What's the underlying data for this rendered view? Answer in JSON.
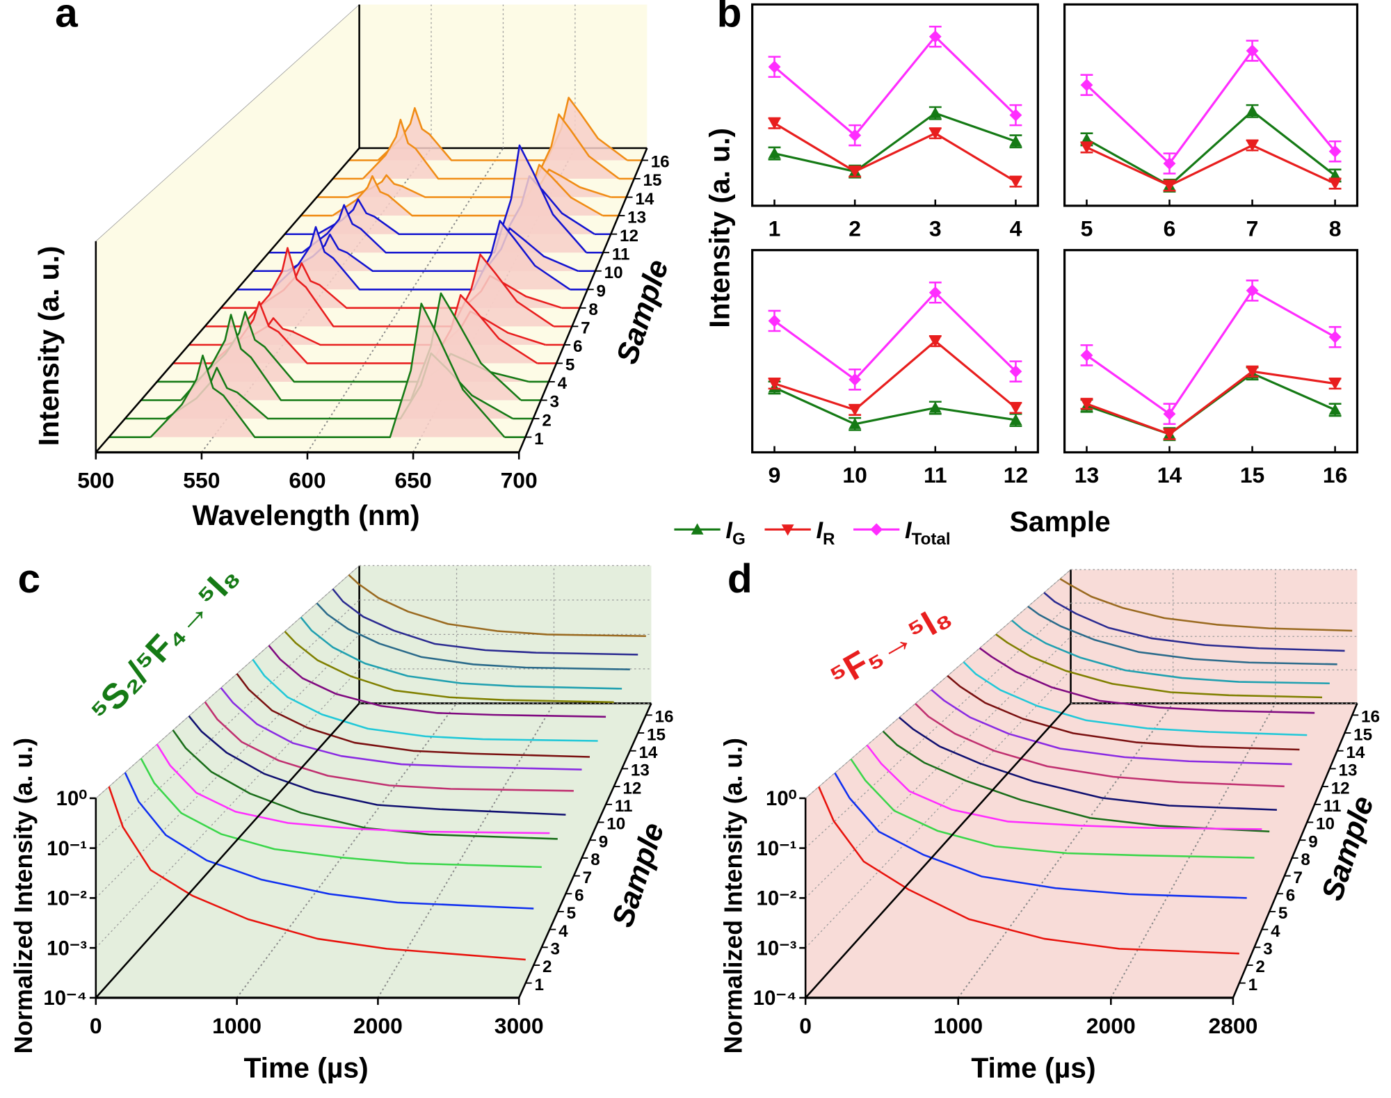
{
  "chart_data": [
    {
      "type": "waterfall",
      "panel_label": "a",
      "xlabel": "Wavelength (nm)",
      "ylabel": "Intensity (a. u.)",
      "zlabel": "Sample",
      "xlim": [
        500,
        700
      ],
      "xticks": [
        500,
        550,
        600,
        650,
        700
      ],
      "ylim": [
        0,
        1.4
      ],
      "log_y": false,
      "fill": "#f7cfc8",
      "wall_color": "#fdfbe6",
      "x": [
        520,
        535,
        542,
        545,
        550,
        555,
        570,
        635,
        645,
        650,
        658,
        670,
        690
      ],
      "series": [
        {
          "name": "1",
          "color": "#157a15",
          "values": [
            0,
            0.22,
            0.39,
            0.55,
            0.33,
            0.28,
            0,
            0,
            0.45,
            0.9,
            0.68,
            0.32,
            0
          ]
        },
        {
          "name": "2",
          "color": "#157a15",
          "values": [
            0,
            0.14,
            0.25,
            0.35,
            0.21,
            0.18,
            0,
            0,
            0.23,
            0.45,
            0.34,
            0.16,
            0
          ]
        },
        {
          "name": "3",
          "color": "#157a15",
          "values": [
            0,
            0.24,
            0.42,
            0.6,
            0.36,
            0.3,
            0,
            0,
            0.38,
            0.75,
            0.56,
            0.26,
            0
          ]
        },
        {
          "name": "4",
          "color": "#157a15",
          "values": [
            0,
            0.2,
            0.35,
            0.5,
            0.3,
            0.25,
            0,
            0,
            0.1,
            0.2,
            0.15,
            0.07,
            0
          ]
        },
        {
          "name": "5",
          "color": "#e81e1e",
          "values": [
            0,
            0.18,
            0.32,
            0.45,
            0.27,
            0.23,
            0,
            0,
            0.25,
            0.5,
            0.38,
            0.18,
            0
          ]
        },
        {
          "name": "6",
          "color": "#e81e1e",
          "values": [
            0,
            0.08,
            0.14,
            0.2,
            0.12,
            0.1,
            0,
            0,
            0.13,
            0.25,
            0.19,
            0.09,
            0
          ]
        },
        {
          "name": "7",
          "color": "#e81e1e",
          "values": [
            0,
            0.24,
            0.42,
            0.6,
            0.36,
            0.3,
            0,
            0,
            0.28,
            0.55,
            0.41,
            0.19,
            0
          ]
        },
        {
          "name": "8",
          "color": "#e81e1e",
          "values": [
            0,
            0.14,
            0.25,
            0.35,
            0.21,
            0.18,
            0,
            0,
            0.13,
            0.25,
            0.19,
            0.09,
            0
          ]
        },
        {
          "name": "9",
          "color": "#1414d0",
          "values": [
            0,
            0.2,
            0.35,
            0.5,
            0.3,
            0.25,
            0,
            0,
            0.28,
            0.55,
            0.41,
            0.19,
            0
          ]
        },
        {
          "name": "10",
          "color": "#1414d0",
          "values": [
            0,
            0.12,
            0.21,
            0.3,
            0.18,
            0.15,
            0,
            0,
            0.18,
            0.35,
            0.26,
            0.12,
            0
          ]
        },
        {
          "name": "11",
          "color": "#1414d0",
          "values": [
            0,
            0.16,
            0.28,
            0.4,
            0.24,
            0.2,
            0,
            0,
            0.45,
            0.9,
            0.68,
            0.32,
            0
          ]
        },
        {
          "name": "12",
          "color": "#1414d0",
          "values": [
            0,
            0.12,
            0.21,
            0.3,
            0.18,
            0.15,
            0,
            0,
            0.25,
            0.5,
            0.38,
            0.18,
            0
          ]
        },
        {
          "name": "13",
          "color": "#f08c14",
          "values": [
            0,
            0.14,
            0.25,
            0.35,
            0.21,
            0.18,
            0,
            0,
            0.23,
            0.45,
            0.34,
            0.16,
            0
          ]
        },
        {
          "name": "14",
          "color": "#f08c14",
          "values": [
            0,
            0.08,
            0.14,
            0.2,
            0.12,
            0.1,
            0,
            0,
            0.13,
            0.25,
            0.19,
            0.09,
            0
          ]
        },
        {
          "name": "15",
          "color": "#f08c14",
          "values": [
            0,
            0.22,
            0.39,
            0.55,
            0.33,
            0.28,
            0,
            0,
            0.3,
            0.6,
            0.45,
            0.21,
            0
          ]
        },
        {
          "name": "16",
          "color": "#f08c14",
          "values": [
            0,
            0.2,
            0.35,
            0.5,
            0.3,
            0.25,
            0,
            0,
            0.3,
            0.6,
            0.45,
            0.21,
            0
          ]
        }
      ]
    },
    {
      "type": "line",
      "panel_label": "b",
      "xlabel": "Sample",
      "ylabel": "Intensity (a. u.)",
      "ylim": [
        0,
        1
      ],
      "categories": [
        "1",
        "2",
        "3",
        "4",
        "5",
        "6",
        "7",
        "8",
        "9",
        "10",
        "11",
        "12",
        "13",
        "14",
        "15",
        "16"
      ],
      "series": [
        {
          "name": "IG",
          "color": "#157a15",
          "marker": "triangle-up",
          "values": [
            0.26,
            0.17,
            0.46,
            0.32,
            0.33,
            0.1,
            0.47,
            0.15,
            0.32,
            0.14,
            0.22,
            0.16,
            0.23,
            0.09,
            0.39,
            0.21
          ],
          "errors": [
            0.03,
            0.03,
            0.03,
            0.03,
            0.03,
            0.03,
            0.03,
            0.03,
            0.03,
            0.03,
            0.03,
            0.03,
            0.03,
            0.03,
            0.03,
            0.03
          ]
        },
        {
          "name": "IR",
          "color": "#e81e1e",
          "marker": "triangle-down",
          "values": [
            0.41,
            0.17,
            0.36,
            0.12,
            0.29,
            0.1,
            0.3,
            0.11,
            0.34,
            0.21,
            0.55,
            0.22,
            0.24,
            0.09,
            0.4,
            0.34
          ],
          "errors": [
            0.025,
            0.025,
            0.025,
            0.025,
            0.025,
            0.025,
            0.025,
            0.025,
            0.025,
            0.025,
            0.025,
            0.025,
            0.025,
            0.025,
            0.025,
            0.025
          ]
        },
        {
          "name": "ITotal",
          "color": "#ff2dff",
          "marker": "diamond",
          "values": [
            0.69,
            0.35,
            0.84,
            0.45,
            0.6,
            0.21,
            0.77,
            0.27,
            0.65,
            0.36,
            0.79,
            0.4,
            0.48,
            0.19,
            0.8,
            0.57
          ],
          "errors": [
            0.05,
            0.05,
            0.05,
            0.05,
            0.05,
            0.05,
            0.05,
            0.05,
            0.05,
            0.05,
            0.05,
            0.05,
            0.05,
            0.05,
            0.05,
            0.05
          ]
        }
      ]
    },
    {
      "type": "waterfall",
      "panel_label": "c",
      "xlabel": "Time (µs)",
      "ylabel": "Normalized Intensity (a. u.)",
      "zlabel": "Sample",
      "annotation": "⁵S₂/⁵F₄→⁵I₈",
      "annotation_color": "#157a15",
      "xlim": [
        0,
        3000
      ],
      "xticks": [
        0,
        1000,
        2000,
        3000
      ],
      "ylim": [
        0.0001,
        1
      ],
      "log_y": true,
      "wall_color": "#e4eedd",
      "yticks": [
        {
          "value": 0.0001,
          "label": "10⁻⁴"
        },
        {
          "value": 0.001,
          "label": "10⁻³"
        },
        {
          "value": 0.01,
          "label": "10⁻²"
        },
        {
          "value": 0.1,
          "label": "10⁻¹"
        },
        {
          "value": 1,
          "label": "10⁰"
        }
      ],
      "x": [
        0,
        100,
        300,
        600,
        1000,
        1500,
        2000,
        3000
      ],
      "series": [
        {
          "name": "1",
          "color": "#e8130d",
          "values": [
            1,
            0.15,
            0.02,
            0.006,
            0.002,
            0.0008,
            0.0005,
            0.0003
          ]
        },
        {
          "name": "2",
          "color": "#1030f0",
          "values": [
            1,
            0.25,
            0.05,
            0.015,
            0.006,
            0.003,
            0.002,
            0.0015
          ]
        },
        {
          "name": "3",
          "color": "#3ad64a",
          "values": [
            1,
            0.3,
            0.07,
            0.025,
            0.012,
            0.008,
            0.006,
            0.005
          ]
        },
        {
          "name": "4",
          "color": "#ff2dff",
          "values": [
            1,
            0.35,
            0.09,
            0.035,
            0.02,
            0.015,
            0.013,
            0.012
          ]
        },
        {
          "name": "5",
          "color": "#1a6e1a",
          "values": [
            1,
            0.4,
            0.12,
            0.04,
            0.015,
            0.007,
            0.005,
            0.004
          ]
        },
        {
          "name": "6",
          "color": "#101070",
          "values": [
            1,
            0.45,
            0.15,
            0.05,
            0.02,
            0.01,
            0.008,
            0.006
          ]
        },
        {
          "name": "7",
          "color": "#c03070",
          "values": [
            1,
            0.4,
            0.12,
            0.045,
            0.02,
            0.012,
            0.01,
            0.009
          ]
        },
        {
          "name": "8",
          "color": "#8a2be2",
          "values": [
            1,
            0.45,
            0.14,
            0.05,
            0.025,
            0.016,
            0.014,
            0.012
          ]
        },
        {
          "name": "9",
          "color": "#7a1010",
          "values": [
            1,
            0.42,
            0.13,
            0.05,
            0.022,
            0.014,
            0.012,
            0.01
          ]
        },
        {
          "name": "10",
          "color": "#20c8d8",
          "values": [
            1,
            0.4,
            0.12,
            0.045,
            0.02,
            0.013,
            0.011,
            0.01
          ]
        },
        {
          "name": "11",
          "color": "#800a80",
          "values": [
            1,
            0.45,
            0.15,
            0.06,
            0.03,
            0.02,
            0.018,
            0.016
          ]
        },
        {
          "name": "12",
          "color": "#808000",
          "values": [
            1,
            0.5,
            0.18,
            0.07,
            0.03,
            0.02,
            0.017,
            0.015
          ]
        },
        {
          "name": "13",
          "color": "#20a0b0",
          "values": [
            1,
            0.45,
            0.16,
            0.06,
            0.028,
            0.018,
            0.015,
            0.013
          ]
        },
        {
          "name": "14",
          "color": "#2a6a8a",
          "values": [
            1,
            0.5,
            0.2,
            0.08,
            0.035,
            0.022,
            0.018,
            0.016
          ]
        },
        {
          "name": "15",
          "color": "#2a2a90",
          "values": [
            1,
            0.45,
            0.17,
            0.07,
            0.03,
            0.02,
            0.017,
            0.015
          ]
        },
        {
          "name": "16",
          "color": "#9a6a20",
          "values": [
            1,
            0.55,
            0.22,
            0.09,
            0.04,
            0.025,
            0.02,
            0.018
          ]
        }
      ]
    },
    {
      "type": "waterfall",
      "panel_label": "d",
      "xlabel": "Time (µs)",
      "ylabel": "Normalized Intensity (a. u.)",
      "zlabel": "Sample",
      "annotation": "⁵F₅→⁵I₈",
      "annotation_color": "#e81e1e",
      "xlim": [
        0,
        2800
      ],
      "xticks": [
        0,
        1000,
        2000,
        2800
      ],
      "ylim": [
        0.0001,
        1
      ],
      "log_y": true,
      "wall_color": "#f8dcd8",
      "yticks": [
        {
          "value": 0.0001,
          "label": "10⁻⁴"
        },
        {
          "value": 0.001,
          "label": "10⁻³"
        },
        {
          "value": 0.01,
          "label": "10⁻²"
        },
        {
          "value": 0.1,
          "label": "10⁻¹"
        },
        {
          "value": 1,
          "label": "10⁰"
        }
      ],
      "x": [
        0,
        100,
        300,
        600,
        1000,
        1500,
        2000,
        2800
      ],
      "series": [
        {
          "name": "1",
          "color": "#e8130d",
          "values": [
            1,
            0.2,
            0.03,
            0.008,
            0.002,
            0.0008,
            0.0005,
            0.0004
          ]
        },
        {
          "name": "2",
          "color": "#1030f0",
          "values": [
            1,
            0.3,
            0.06,
            0.02,
            0.007,
            0.004,
            0.003,
            0.0025
          ]
        },
        {
          "name": "3",
          "color": "#3ad64a",
          "values": [
            1,
            0.35,
            0.08,
            0.03,
            0.014,
            0.01,
            0.009,
            0.008
          ]
        },
        {
          "name": "4",
          "color": "#ff2dff",
          "values": [
            1,
            0.4,
            0.1,
            0.04,
            0.022,
            0.018,
            0.016,
            0.015
          ]
        },
        {
          "name": "5",
          "color": "#1a6e1a",
          "values": [
            1,
            0.5,
            0.2,
            0.08,
            0.03,
            0.012,
            0.008,
            0.006
          ]
        },
        {
          "name": "6",
          "color": "#101070",
          "values": [
            1,
            0.55,
            0.22,
            0.09,
            0.035,
            0.015,
            0.01,
            0.008
          ]
        },
        {
          "name": "7",
          "color": "#c03070",
          "values": [
            1,
            0.5,
            0.2,
            0.08,
            0.035,
            0.02,
            0.015,
            0.012
          ]
        },
        {
          "name": "8",
          "color": "#8a2be2",
          "values": [
            1,
            0.55,
            0.22,
            0.09,
            0.04,
            0.025,
            0.02,
            0.017
          ]
        },
        {
          "name": "9",
          "color": "#7a1010",
          "values": [
            1,
            0.55,
            0.22,
            0.09,
            0.04,
            0.024,
            0.019,
            0.016
          ]
        },
        {
          "name": "10",
          "color": "#20c8d8",
          "values": [
            1,
            0.5,
            0.2,
            0.08,
            0.035,
            0.022,
            0.018,
            0.015
          ]
        },
        {
          "name": "11",
          "color": "#800a80",
          "values": [
            1,
            0.6,
            0.25,
            0.1,
            0.045,
            0.03,
            0.025,
            0.022
          ]
        },
        {
          "name": "12",
          "color": "#808000",
          "values": [
            1,
            0.6,
            0.26,
            0.11,
            0.05,
            0.03,
            0.025,
            0.022
          ]
        },
        {
          "name": "13",
          "color": "#20a0b0",
          "values": [
            1,
            0.55,
            0.24,
            0.1,
            0.045,
            0.028,
            0.022,
            0.02
          ]
        },
        {
          "name": "14",
          "color": "#2a6a8a",
          "values": [
            1,
            0.6,
            0.28,
            0.12,
            0.055,
            0.035,
            0.028,
            0.025
          ]
        },
        {
          "name": "15",
          "color": "#2a2a90",
          "values": [
            1,
            0.55,
            0.25,
            0.1,
            0.05,
            0.032,
            0.026,
            0.022
          ]
        },
        {
          "name": "16",
          "color": "#9a6a20",
          "values": [
            1,
            0.65,
            0.3,
            0.14,
            0.07,
            0.045,
            0.035,
            0.03
          ]
        }
      ]
    }
  ]
}
